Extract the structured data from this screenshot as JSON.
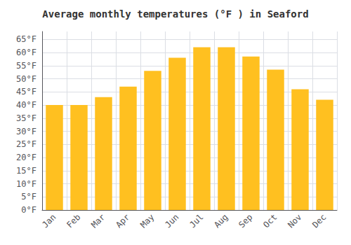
{
  "chart_data": {
    "type": "bar",
    "title": "Average monthly temperatures (°F ) in Seaford",
    "categories": [
      "Jan",
      "Feb",
      "Mar",
      "Apr",
      "May",
      "Jun",
      "Jul",
      "Aug",
      "Sep",
      "Oct",
      "Nov",
      "Dec"
    ],
    "values": [
      40,
      40,
      43,
      47,
      53,
      58,
      62,
      62,
      58.5,
      53.5,
      46,
      42
    ],
    "color": "#FFC020",
    "ylim": [
      0,
      68
    ],
    "yticks": [
      {
        "value": 0,
        "label": "0°F"
      },
      {
        "value": 5,
        "label": "5°F"
      },
      {
        "value": 10,
        "label": "10°F"
      },
      {
        "value": 15,
        "label": "15°F"
      },
      {
        "value": 20,
        "label": "20°F"
      },
      {
        "value": 25,
        "label": "25°F"
      },
      {
        "value": 30,
        "label": "30°F"
      },
      {
        "value": 35,
        "label": "35°F"
      },
      {
        "value": 40,
        "label": "40°F"
      },
      {
        "value": 45,
        "label": "45°F"
      },
      {
        "value": 50,
        "label": "50°F"
      },
      {
        "value": 55,
        "label": "55°F"
      },
      {
        "value": 60,
        "label": "60°F"
      },
      {
        "value": 65,
        "label": "65°F"
      }
    ],
    "grid": true
  }
}
